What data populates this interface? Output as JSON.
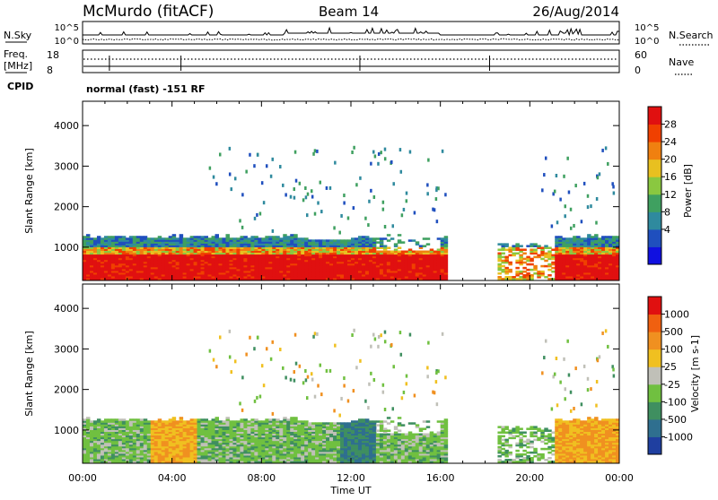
{
  "header": {
    "station": "McMurdo (fitACF)",
    "beam": "Beam 14",
    "date": "26/Aug/2014"
  },
  "noise_panel": {
    "left_label": "N.Sky",
    "right_label": "N.Search",
    "tick_top": "10^5",
    "tick_bottom": "10^0"
  },
  "freq_panel": {
    "left_label_line1": "Freq.",
    "left_label_line2": "[MHz]",
    "right_label": "Nave",
    "left_ticks": [
      "18",
      "8"
    ],
    "right_ticks": [
      "60",
      "0"
    ]
  },
  "cpid": {
    "label": "CPID",
    "text": "normal (fast) -151 RF"
  },
  "time_axis": {
    "label": "Time UT",
    "ticks": [
      "00:00",
      "04:00",
      "08:00",
      "12:00",
      "16:00",
      "20:00",
      "00:00"
    ]
  },
  "chart_data": [
    {
      "type": "heatmap",
      "quantity": "Power",
      "ylabel": "Slant Range [km]",
      "yticks": [
        1000,
        2000,
        3000,
        4000
      ],
      "ylim": [
        180,
        4600
      ],
      "xlim_hours": [
        0,
        24
      ],
      "colorbar": {
        "label": "Power [dB]",
        "ticks": [
          "28",
          "24",
          "20",
          "16",
          "12",
          "8",
          "4"
        ],
        "colors": [
          "#1010e0",
          "#1f4fbe",
          "#2f8a9e",
          "#3fa060",
          "#8ac840",
          "#e8c020",
          "#f08010",
          "#f04000",
          "#e01010"
        ]
      }
    },
    {
      "type": "heatmap",
      "quantity": "Velocity",
      "ylabel": "Slant Range [km]",
      "yticks": [
        1000,
        2000,
        3000,
        4000
      ],
      "ylim": [
        180,
        4600
      ],
      "xlim_hours": [
        0,
        24
      ],
      "colorbar": {
        "label": "Velocity [m s-1]",
        "ticks": [
          "1000",
          "500",
          "100",
          "25",
          "-25",
          "-100",
          "-500",
          "-1000"
        ],
        "colors": [
          "#1f3fa0",
          "#2f6f8f",
          "#3f8f60",
          "#70c040",
          "#c0c0b8",
          "#f0c020",
          "#f09020",
          "#f06010",
          "#e01010"
        ]
      }
    }
  ]
}
